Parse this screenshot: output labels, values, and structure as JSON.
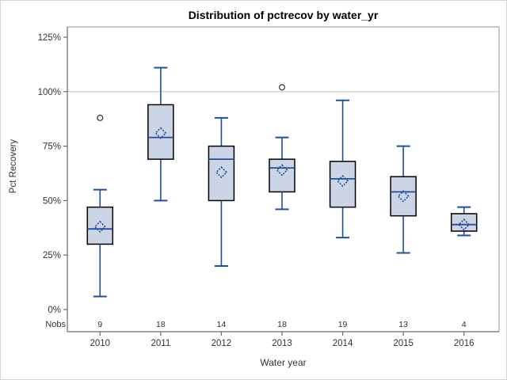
{
  "chart_data": {
    "type": "boxplot",
    "title": "Distribution of pctrecov by water_yr",
    "xlabel": "Water year",
    "ylabel": "Pct Recovery",
    "nobs_label": "Nobs",
    "yticks": [
      0,
      25,
      50,
      75,
      100,
      125
    ],
    "ytick_suffix": "%",
    "ylim": [
      0,
      140
    ],
    "reference_line_at": 100,
    "grid": "single horizontal reference line at 100%",
    "legend_position": "none",
    "categories": [
      "2010",
      "2011",
      "2012",
      "2013",
      "2014",
      "2015",
      "2016"
    ],
    "nobs": [
      9,
      18,
      14,
      18,
      19,
      13,
      4
    ],
    "boxes": [
      {
        "category": "2010",
        "n": 9,
        "whisker_low": 6,
        "q1": 30,
        "median": 37,
        "mean": 38,
        "q3": 47,
        "whisker_high": 55,
        "outliers": [
          88
        ]
      },
      {
        "category": "2011",
        "n": 18,
        "whisker_low": 50,
        "q1": 69,
        "median": 79,
        "mean": 81,
        "q3": 94,
        "whisker_high": 111,
        "outliers": []
      },
      {
        "category": "2012",
        "n": 14,
        "whisker_low": 20,
        "q1": 50,
        "median": 69,
        "mean": 63,
        "q3": 75,
        "whisker_high": 88,
        "outliers": []
      },
      {
        "category": "2013",
        "n": 18,
        "whisker_low": 46,
        "q1": 54,
        "median": 65,
        "mean": 64,
        "q3": 69,
        "whisker_high": 79,
        "outliers": [
          102
        ]
      },
      {
        "category": "2014",
        "n": 19,
        "whisker_low": 33,
        "q1": 47,
        "median": 60,
        "mean": 59,
        "q3": 68,
        "whisker_high": 96,
        "outliers": []
      },
      {
        "category": "2015",
        "n": 13,
        "whisker_low": 26,
        "q1": 43,
        "median": 54,
        "mean": 52,
        "q3": 61,
        "whisker_high": 75,
        "outliers": []
      },
      {
        "category": "2016",
        "n": 4,
        "whisker_low": 34,
        "q1": 36,
        "median": 39,
        "mean": 39,
        "q3": 44,
        "whisker_high": 47,
        "outliers": []
      }
    ],
    "colors": {
      "box_fill": "#ccd5e5",
      "box_border": "#000000",
      "whisker": "#1f4e9e",
      "median": "#1f4e9e",
      "mean_marker": "#1f4e9e",
      "outlier": "#3c3c3c",
      "reference_line": "#c9c9c9",
      "axis_line": "#6b6b6b",
      "frame_line": "#a9a9a9",
      "text": "#333333"
    }
  }
}
